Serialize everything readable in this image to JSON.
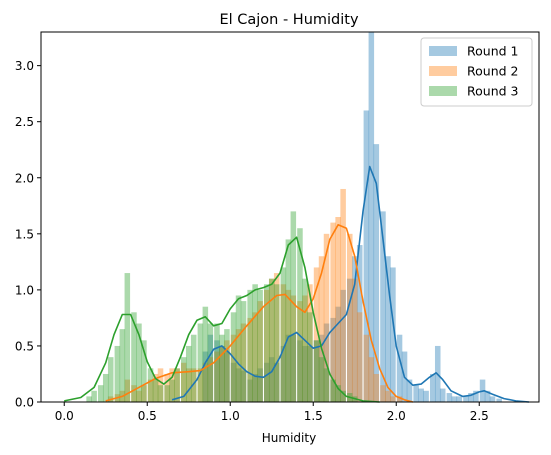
{
  "chart_data": {
    "type": "histogram-kde",
    "title": "El Cajon - Humidity",
    "xlabel": "Humidity",
    "ylabel": "",
    "xlim": [
      -0.14,
      2.86
    ],
    "ylim": [
      0,
      3.3
    ],
    "xticks": [
      "0.0",
      "0.5",
      "1.0",
      "1.5",
      "2.0",
      "2.5"
    ],
    "yticks": [
      "0.0",
      "0.5",
      "1.0",
      "1.5",
      "2.0",
      "2.5",
      "3.0"
    ],
    "legend_position": "top-right",
    "grid": false,
    "bin_width": 0.0333,
    "series": [
      {
        "name": "Round 1",
        "color": "#1f77b4",
        "fill_opacity": 0.4,
        "bins": [
          [
            0.85,
            0.45
          ],
          [
            0.88,
            0.6
          ],
          [
            0.92,
            0.55
          ],
          [
            0.95,
            0.5
          ],
          [
            0.98,
            0.45
          ],
          [
            1.02,
            0.35
          ],
          [
            1.05,
            0.3
          ],
          [
            1.08,
            0.28
          ],
          [
            1.12,
            0.2
          ],
          [
            1.15,
            0.25
          ],
          [
            1.18,
            0.3
          ],
          [
            1.22,
            0.35
          ],
          [
            1.25,
            0.4
          ],
          [
            1.28,
            0.35
          ],
          [
            1.32,
            0.5
          ],
          [
            1.35,
            0.6
          ],
          [
            1.38,
            0.6
          ],
          [
            1.42,
            0.55
          ],
          [
            1.45,
            0.5
          ],
          [
            1.48,
            0.5
          ],
          [
            1.52,
            0.55
          ],
          [
            1.55,
            0.6
          ],
          [
            1.58,
            0.7
          ],
          [
            1.62,
            0.75
          ],
          [
            1.65,
            0.85
          ],
          [
            1.68,
            1.0
          ],
          [
            1.72,
            1.1
          ],
          [
            1.75,
            1.3
          ],
          [
            1.78,
            1.4
          ],
          [
            1.82,
            2.6
          ],
          [
            1.85,
            3.3
          ],
          [
            1.88,
            2.3
          ],
          [
            1.92,
            1.7
          ],
          [
            1.95,
            1.3
          ],
          [
            1.98,
            1.2
          ],
          [
            2.02,
            0.6
          ],
          [
            2.05,
            0.45
          ],
          [
            2.08,
            0.2
          ],
          [
            2.12,
            0.15
          ],
          [
            2.15,
            0.12
          ],
          [
            2.18,
            0.1
          ],
          [
            2.22,
            0.25
          ],
          [
            2.25,
            0.5
          ],
          [
            2.28,
            0.12
          ],
          [
            2.32,
            0.08
          ],
          [
            2.35,
            0.05
          ],
          [
            2.38,
            0.05
          ],
          [
            2.42,
            0.05
          ],
          [
            2.45,
            0.08
          ],
          [
            2.48,
            0.1
          ],
          [
            2.52,
            0.2
          ],
          [
            2.55,
            0.1
          ],
          [
            2.58,
            0.05
          ],
          [
            2.62,
            0.03
          ]
        ],
        "kde": [
          [
            0.65,
            0.02
          ],
          [
            0.72,
            0.05
          ],
          [
            0.8,
            0.2
          ],
          [
            0.85,
            0.35
          ],
          [
            0.9,
            0.47
          ],
          [
            0.95,
            0.5
          ],
          [
            1.0,
            0.43
          ],
          [
            1.05,
            0.34
          ],
          [
            1.1,
            0.27
          ],
          [
            1.15,
            0.23
          ],
          [
            1.2,
            0.22
          ],
          [
            1.25,
            0.27
          ],
          [
            1.3,
            0.4
          ],
          [
            1.35,
            0.58
          ],
          [
            1.4,
            0.62
          ],
          [
            1.45,
            0.55
          ],
          [
            1.5,
            0.48
          ],
          [
            1.55,
            0.5
          ],
          [
            1.6,
            0.62
          ],
          [
            1.65,
            0.7
          ],
          [
            1.7,
            0.78
          ],
          [
            1.75,
            1.05
          ],
          [
            1.8,
            1.7
          ],
          [
            1.84,
            2.1
          ],
          [
            1.88,
            1.95
          ],
          [
            1.92,
            1.45
          ],
          [
            1.96,
            0.95
          ],
          [
            2.0,
            0.5
          ],
          [
            2.05,
            0.22
          ],
          [
            2.1,
            0.15
          ],
          [
            2.15,
            0.16
          ],
          [
            2.2,
            0.22
          ],
          [
            2.24,
            0.26
          ],
          [
            2.28,
            0.2
          ],
          [
            2.33,
            0.1
          ],
          [
            2.4,
            0.05
          ],
          [
            2.45,
            0.06
          ],
          [
            2.5,
            0.09
          ],
          [
            2.53,
            0.1
          ],
          [
            2.58,
            0.07
          ],
          [
            2.65,
            0.03
          ],
          [
            2.72,
            0.01
          ],
          [
            2.8,
            0.0
          ]
        ]
      },
      {
        "name": "Round 2",
        "color": "#ff7f0e",
        "fill_opacity": 0.4,
        "bins": [
          [
            0.28,
            0.05
          ],
          [
            0.32,
            0.07
          ],
          [
            0.35,
            0.1
          ],
          [
            0.38,
            0.2
          ],
          [
            0.42,
            0.15
          ],
          [
            0.45,
            0.1
          ],
          [
            0.48,
            0.15
          ],
          [
            0.52,
            0.2
          ],
          [
            0.55,
            0.25
          ],
          [
            0.58,
            0.3
          ],
          [
            0.62,
            0.25
          ],
          [
            0.65,
            0.3
          ],
          [
            0.68,
            0.3
          ],
          [
            0.72,
            0.35
          ],
          [
            0.75,
            0.3
          ],
          [
            0.78,
            0.3
          ],
          [
            0.82,
            0.3
          ],
          [
            0.85,
            0.35
          ],
          [
            0.88,
            0.4
          ],
          [
            0.92,
            0.45
          ],
          [
            0.95,
            0.5
          ],
          [
            0.98,
            0.55
          ],
          [
            1.02,
            0.6
          ],
          [
            1.05,
            0.65
          ],
          [
            1.08,
            0.7
          ],
          [
            1.12,
            0.75
          ],
          [
            1.15,
            0.8
          ],
          [
            1.18,
            0.9
          ],
          [
            1.22,
            1.0
          ],
          [
            1.25,
            1.1
          ],
          [
            1.28,
            1.15
          ],
          [
            1.32,
            1.05
          ],
          [
            1.35,
            1.0
          ],
          [
            1.38,
            0.95
          ],
          [
            1.42,
            0.9
          ],
          [
            1.45,
            0.95
          ],
          [
            1.48,
            1.05
          ],
          [
            1.52,
            1.2
          ],
          [
            1.55,
            1.3
          ],
          [
            1.58,
            1.5
          ],
          [
            1.62,
            1.6
          ],
          [
            1.65,
            1.65
          ],
          [
            1.68,
            1.9
          ],
          [
            1.72,
            1.5
          ],
          [
            1.75,
            1.1
          ],
          [
            1.78,
            0.8
          ],
          [
            1.82,
            0.6
          ],
          [
            1.85,
            0.4
          ],
          [
            1.88,
            0.25
          ],
          [
            1.92,
            0.15
          ],
          [
            1.95,
            0.1
          ],
          [
            1.98,
            0.05
          ],
          [
            2.02,
            0.05
          ]
        ],
        "kde": [
          [
            0.25,
            0.01
          ],
          [
            0.35,
            0.05
          ],
          [
            0.45,
            0.13
          ],
          [
            0.55,
            0.21
          ],
          [
            0.65,
            0.26
          ],
          [
            0.75,
            0.27
          ],
          [
            0.82,
            0.28
          ],
          [
            0.9,
            0.35
          ],
          [
            1.0,
            0.5
          ],
          [
            1.1,
            0.68
          ],
          [
            1.2,
            0.85
          ],
          [
            1.28,
            0.95
          ],
          [
            1.33,
            0.96
          ],
          [
            1.4,
            0.85
          ],
          [
            1.45,
            0.8
          ],
          [
            1.5,
            0.92
          ],
          [
            1.55,
            1.15
          ],
          [
            1.6,
            1.45
          ],
          [
            1.65,
            1.58
          ],
          [
            1.7,
            1.55
          ],
          [
            1.75,
            1.3
          ],
          [
            1.8,
            0.9
          ],
          [
            1.85,
            0.55
          ],
          [
            1.9,
            0.3
          ],
          [
            1.95,
            0.13
          ],
          [
            2.0,
            0.05
          ],
          [
            2.05,
            0.02
          ],
          [
            2.1,
            0.0
          ]
        ]
      },
      {
        "name": "Round 3",
        "color": "#2ca02c",
        "fill_opacity": 0.4,
        "bins": [
          [
            0.15,
            0.05
          ],
          [
            0.18,
            0.1
          ],
          [
            0.22,
            0.15
          ],
          [
            0.25,
            0.25
          ],
          [
            0.28,
            0.4
          ],
          [
            0.32,
            0.5
          ],
          [
            0.35,
            0.65
          ],
          [
            0.38,
            1.15
          ],
          [
            0.42,
            0.8
          ],
          [
            0.45,
            0.7
          ],
          [
            0.48,
            0.55
          ],
          [
            0.52,
            0.3
          ],
          [
            0.55,
            0.2
          ],
          [
            0.58,
            0.15
          ],
          [
            0.62,
            0.15
          ],
          [
            0.65,
            0.2
          ],
          [
            0.68,
            0.3
          ],
          [
            0.72,
            0.4
          ],
          [
            0.75,
            0.5
          ],
          [
            0.78,
            0.6
          ],
          [
            0.82,
            0.7
          ],
          [
            0.85,
            0.85
          ],
          [
            0.88,
            0.7
          ],
          [
            0.92,
            0.7
          ],
          [
            0.95,
            0.6
          ],
          [
            0.98,
            0.65
          ],
          [
            1.02,
            0.8
          ],
          [
            1.05,
            0.95
          ],
          [
            1.08,
            0.9
          ],
          [
            1.12,
            1.0
          ],
          [
            1.15,
            1.05
          ],
          [
            1.18,
            1.0
          ],
          [
            1.22,
            1.05
          ],
          [
            1.25,
            1.1
          ],
          [
            1.28,
            1.05
          ],
          [
            1.32,
            1.2
          ],
          [
            1.35,
            1.45
          ],
          [
            1.38,
            1.7
          ],
          [
            1.42,
            1.55
          ],
          [
            1.45,
            1.1
          ],
          [
            1.48,
            0.8
          ],
          [
            1.52,
            0.55
          ],
          [
            1.55,
            0.4
          ],
          [
            1.58,
            0.3
          ],
          [
            1.62,
            0.2
          ],
          [
            1.65,
            0.15
          ],
          [
            1.68,
            0.1
          ],
          [
            1.72,
            0.08
          ],
          [
            1.75,
            0.05
          ]
        ],
        "kde": [
          [
            0.0,
            0.01
          ],
          [
            0.1,
            0.04
          ],
          [
            0.18,
            0.13
          ],
          [
            0.25,
            0.35
          ],
          [
            0.3,
            0.6
          ],
          [
            0.35,
            0.78
          ],
          [
            0.4,
            0.78
          ],
          [
            0.45,
            0.6
          ],
          [
            0.5,
            0.36
          ],
          [
            0.55,
            0.21
          ],
          [
            0.6,
            0.16
          ],
          [
            0.65,
            0.22
          ],
          [
            0.7,
            0.4
          ],
          [
            0.75,
            0.6
          ],
          [
            0.8,
            0.73
          ],
          [
            0.85,
            0.76
          ],
          [
            0.9,
            0.68
          ],
          [
            0.95,
            0.7
          ],
          [
            1.0,
            0.83
          ],
          [
            1.05,
            0.92
          ],
          [
            1.1,
            0.95
          ],
          [
            1.15,
            1.0
          ],
          [
            1.2,
            1.02
          ],
          [
            1.25,
            1.05
          ],
          [
            1.3,
            1.15
          ],
          [
            1.35,
            1.4
          ],
          [
            1.4,
            1.47
          ],
          [
            1.45,
            1.2
          ],
          [
            1.5,
            0.8
          ],
          [
            1.55,
            0.48
          ],
          [
            1.6,
            0.25
          ],
          [
            1.65,
            0.12
          ],
          [
            1.7,
            0.05
          ],
          [
            1.8,
            0.01
          ],
          [
            1.9,
            0.0
          ]
        ]
      }
    ]
  }
}
